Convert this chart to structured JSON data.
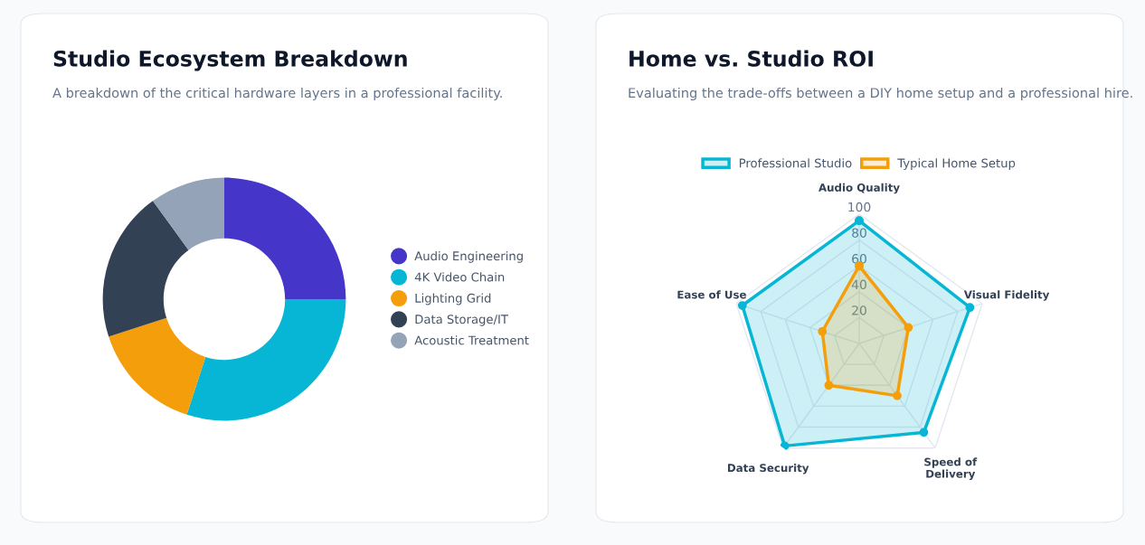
{
  "chart_data": [
    {
      "type": "donut",
      "title": "Studio Ecosystem Breakdown",
      "subtitle": "A breakdown of the critical hardware layers in a professional facility.",
      "categories": [
        "Audio Engineering",
        "4K Video Chain",
        "Lighting Grid",
        "Data Storage/IT",
        "Acoustic Treatment"
      ],
      "values": [
        25,
        30,
        15,
        20,
        10
      ],
      "colors": [
        "#4536c9",
        "#06b6d4",
        "#f59e0b",
        "#334155",
        "#94a3b8"
      ],
      "legend": "right"
    },
    {
      "type": "radar",
      "title": "Home vs. Studio ROI",
      "subtitle": "Evaluating the trade-offs between a DIY home setup and a professional hire.",
      "categories": [
        "Audio Quality",
        "Visual Fidelity",
        "Speed of\nDelivery",
        "Data Security",
        "Ease of Use"
      ],
      "series": [
        {
          "name": "Professional Studio",
          "color": "#06b6d4",
          "values": [
            95,
            90,
            85,
            98,
            95
          ]
        },
        {
          "name": "Typical Home Setup",
          "color": "#f59e0b",
          "values": [
            60,
            40,
            50,
            40,
            30
          ]
        }
      ],
      "ylim": [
        0,
        100
      ],
      "yticks": [
        20,
        40,
        60,
        80,
        100
      ],
      "grid": true,
      "legend": "top",
      "marker": "circle"
    }
  ]
}
